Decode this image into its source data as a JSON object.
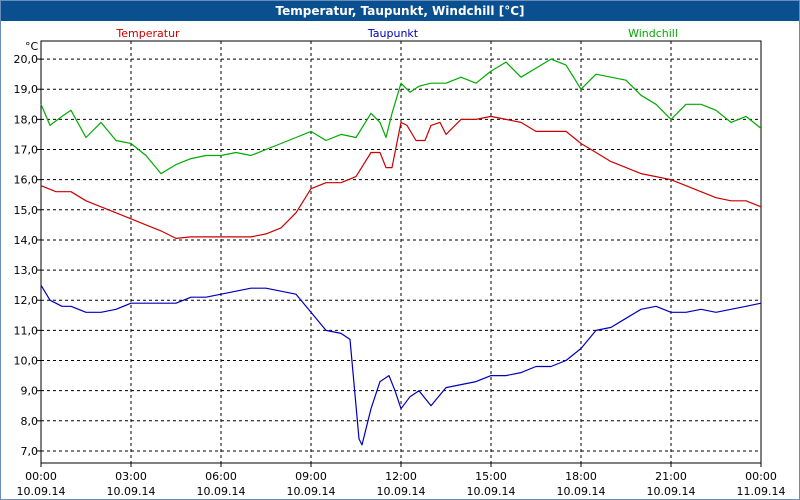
{
  "window": {
    "title": "Temperatur, Taupunkt, Windchill [°C]"
  },
  "chart_data": {
    "type": "line",
    "title": "Temperatur, Taupunkt, Windchill [°C]",
    "ylabel": "°C",
    "xlabel": "",
    "ylim": [
      6.6,
      20.6
    ],
    "yticks": [
      "7,0",
      "8,0",
      "9,0",
      "10,0",
      "11,0",
      "12,0",
      "13,0",
      "14,0",
      "15,0",
      "16,0",
      "17,0",
      "18,0",
      "19,0",
      "20,0"
    ],
    "ytick_values": [
      7,
      8,
      9,
      10,
      11,
      12,
      13,
      14,
      15,
      16,
      17,
      18,
      19,
      20
    ],
    "xlim": [
      0,
      24
    ],
    "xtick_values": [
      0,
      3,
      6,
      9,
      12,
      15,
      18,
      21,
      24
    ],
    "xticks": [
      {
        "time": "00:00",
        "date": "10.09.14"
      },
      {
        "time": "03:00",
        "date": "10.09.14"
      },
      {
        "time": "06:00",
        "date": "10.09.14"
      },
      {
        "time": "09:00",
        "date": "10.09.14"
      },
      {
        "time": "12:00",
        "date": "10.09.14"
      },
      {
        "time": "15:00",
        "date": "10.09.14"
      },
      {
        "time": "18:00",
        "date": "10.09.14"
      },
      {
        "time": "21:00",
        "date": "10.09.14"
      },
      {
        "time": "00:00",
        "date": "11.09.14"
      }
    ],
    "grid": true,
    "legend_position": "top",
    "series": [
      {
        "name": "Temperatur",
        "color": "#cc0000",
        "points": [
          [
            0,
            15.8
          ],
          [
            0.5,
            15.6
          ],
          [
            1,
            15.6
          ],
          [
            1.5,
            15.3
          ],
          [
            2,
            15.1
          ],
          [
            2.5,
            14.9
          ],
          [
            3,
            14.7
          ],
          [
            3.5,
            14.5
          ],
          [
            4,
            14.3
          ],
          [
            4.5,
            14.05
          ],
          [
            5,
            14.1
          ],
          [
            5.5,
            14.1
          ],
          [
            6,
            14.1
          ],
          [
            6.5,
            14.1
          ],
          [
            7,
            14.1
          ],
          [
            7.5,
            14.2
          ],
          [
            8,
            14.4
          ],
          [
            8.5,
            14.9
          ],
          [
            9,
            15.7
          ],
          [
            9.5,
            15.9
          ],
          [
            10,
            15.9
          ],
          [
            10.5,
            16.1
          ],
          [
            11,
            16.9
          ],
          [
            11.3,
            16.9
          ],
          [
            11.5,
            16.4
          ],
          [
            11.7,
            16.4
          ],
          [
            12,
            17.9
          ],
          [
            12.2,
            17.8
          ],
          [
            12.5,
            17.3
          ],
          [
            12.8,
            17.3
          ],
          [
            13,
            17.8
          ],
          [
            13.3,
            17.9
          ],
          [
            13.5,
            17.5
          ],
          [
            14,
            18.0
          ],
          [
            14.5,
            18.0
          ],
          [
            15,
            18.1
          ],
          [
            15.5,
            18.0
          ],
          [
            16,
            17.9
          ],
          [
            16.5,
            17.6
          ],
          [
            17,
            17.6
          ],
          [
            17.5,
            17.6
          ],
          [
            18,
            17.2
          ],
          [
            18.5,
            16.9
          ],
          [
            19,
            16.6
          ],
          [
            19.5,
            16.4
          ],
          [
            20,
            16.2
          ],
          [
            20.5,
            16.1
          ],
          [
            21,
            16.0
          ],
          [
            21.5,
            15.8
          ],
          [
            22,
            15.6
          ],
          [
            22.5,
            15.4
          ],
          [
            23,
            15.3
          ],
          [
            23.5,
            15.3
          ],
          [
            24,
            15.1
          ]
        ]
      },
      {
        "name": "Taupunkt",
        "color": "#0000bb",
        "points": [
          [
            0,
            12.5
          ],
          [
            0.3,
            12.0
          ],
          [
            0.7,
            11.8
          ],
          [
            1,
            11.8
          ],
          [
            1.5,
            11.6
          ],
          [
            2,
            11.6
          ],
          [
            2.5,
            11.7
          ],
          [
            3,
            11.9
          ],
          [
            3.5,
            11.9
          ],
          [
            4,
            11.9
          ],
          [
            4.5,
            11.9
          ],
          [
            5,
            12.1
          ],
          [
            5.5,
            12.1
          ],
          [
            6,
            12.2
          ],
          [
            6.5,
            12.3
          ],
          [
            7,
            12.4
          ],
          [
            7.5,
            12.4
          ],
          [
            8,
            12.3
          ],
          [
            8.5,
            12.2
          ],
          [
            9,
            11.6
          ],
          [
            9.5,
            11.0
          ],
          [
            10,
            10.9
          ],
          [
            10.3,
            10.7
          ],
          [
            10.5,
            8.5
          ],
          [
            10.6,
            7.4
          ],
          [
            10.7,
            7.2
          ],
          [
            11,
            8.4
          ],
          [
            11.3,
            9.3
          ],
          [
            11.6,
            9.5
          ],
          [
            11.8,
            9.0
          ],
          [
            12,
            8.4
          ],
          [
            12.3,
            8.8
          ],
          [
            12.6,
            9.0
          ],
          [
            13,
            8.5
          ],
          [
            13.5,
            9.1
          ],
          [
            14,
            9.2
          ],
          [
            14.5,
            9.3
          ],
          [
            15,
            9.5
          ],
          [
            15.5,
            9.5
          ],
          [
            16,
            9.6
          ],
          [
            16.5,
            9.8
          ],
          [
            17,
            9.8
          ],
          [
            17.5,
            10.0
          ],
          [
            18,
            10.4
          ],
          [
            18.5,
            11.0
          ],
          [
            19,
            11.1
          ],
          [
            19.5,
            11.4
          ],
          [
            20,
            11.7
          ],
          [
            20.5,
            11.8
          ],
          [
            21,
            11.6
          ],
          [
            21.5,
            11.6
          ],
          [
            22,
            11.7
          ],
          [
            22.5,
            11.6
          ],
          [
            23,
            11.7
          ],
          [
            23.5,
            11.8
          ],
          [
            24,
            11.9
          ]
        ]
      },
      {
        "name": "Windchill",
        "color": "#00aa00",
        "points": [
          [
            0,
            18.5
          ],
          [
            0.3,
            17.8
          ],
          [
            0.7,
            18.1
          ],
          [
            1,
            18.3
          ],
          [
            1.5,
            17.4
          ],
          [
            2,
            17.9
          ],
          [
            2.5,
            17.3
          ],
          [
            3,
            17.2
          ],
          [
            3.5,
            16.8
          ],
          [
            4,
            16.2
          ],
          [
            4.5,
            16.5
          ],
          [
            5,
            16.7
          ],
          [
            5.5,
            16.8
          ],
          [
            6,
            16.8
          ],
          [
            6.5,
            16.9
          ],
          [
            7,
            16.8
          ],
          [
            7.5,
            17.0
          ],
          [
            8,
            17.2
          ],
          [
            8.5,
            17.4
          ],
          [
            9,
            17.6
          ],
          [
            9.5,
            17.3
          ],
          [
            10,
            17.5
          ],
          [
            10.5,
            17.4
          ],
          [
            11,
            18.2
          ],
          [
            11.3,
            17.9
          ],
          [
            11.5,
            17.4
          ],
          [
            11.7,
            18.2
          ],
          [
            12,
            19.2
          ],
          [
            12.3,
            18.9
          ],
          [
            12.6,
            19.1
          ],
          [
            13,
            19.2
          ],
          [
            13.5,
            19.2
          ],
          [
            14,
            19.4
          ],
          [
            14.5,
            19.2
          ],
          [
            15,
            19.6
          ],
          [
            15.5,
            19.9
          ],
          [
            16,
            19.4
          ],
          [
            16.5,
            19.7
          ],
          [
            17,
            20.0
          ],
          [
            17.5,
            19.8
          ],
          [
            18,
            19.0
          ],
          [
            18.5,
            19.5
          ],
          [
            19,
            19.4
          ],
          [
            19.5,
            19.3
          ],
          [
            20,
            18.8
          ],
          [
            20.5,
            18.5
          ],
          [
            21,
            18.0
          ],
          [
            21.5,
            18.5
          ],
          [
            22,
            18.5
          ],
          [
            22.5,
            18.3
          ],
          [
            23,
            17.9
          ],
          [
            23.5,
            18.1
          ],
          [
            24,
            17.7
          ]
        ]
      }
    ]
  }
}
